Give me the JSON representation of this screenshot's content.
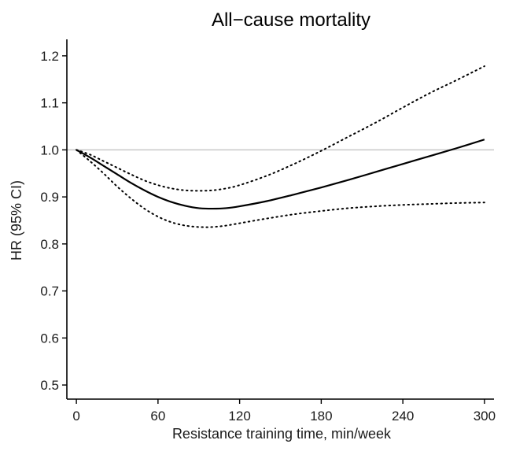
{
  "chart_data": {
    "type": "line",
    "title": "All−cause mortality",
    "xlabel": "Resistance training time, min/week",
    "ylabel": "HR (95% CI)",
    "xlim": [
      -7,
      307
    ],
    "ylim": [
      0.47,
      1.235
    ],
    "xticks": [
      0,
      60,
      120,
      180,
      240,
      300
    ],
    "xtick_labels": [
      "0",
      "60",
      "120",
      "180",
      "240",
      "300"
    ],
    "yticks": [
      0.5,
      0.6,
      0.7,
      0.8,
      0.9,
      1.0,
      1.1,
      1.2
    ],
    "ytick_labels": [
      "0.5",
      "0.6",
      "0.7",
      "0.8",
      "0.9",
      "1.0",
      "1.1",
      "1.2"
    ],
    "reference_line": {
      "y": 1.0,
      "color": "#c8c8c8"
    },
    "grid": false,
    "series": [
      {
        "style": "solid",
        "x": [
          0,
          10,
          20,
          30,
          40,
          50,
          60,
          70,
          80,
          90,
          100,
          110,
          120,
          140,
          160,
          180,
          200,
          220,
          240,
          260,
          280,
          300
        ],
        "y": [
          1.0,
          0.984,
          0.966,
          0.948,
          0.93,
          0.914,
          0.9,
          0.889,
          0.881,
          0.876,
          0.875,
          0.876,
          0.88,
          0.891,
          0.905,
          0.92,
          0.936,
          0.953,
          0.97,
          0.987,
          1.004,
          1.022
        ]
      },
      {
        "style": "dotted",
        "x": [
          0,
          10,
          20,
          30,
          40,
          50,
          60,
          70,
          80,
          90,
          100,
          110,
          120,
          140,
          160,
          180,
          200,
          220,
          240,
          260,
          280,
          300
        ],
        "y": [
          1.0,
          0.99,
          0.976,
          0.962,
          0.948,
          0.935,
          0.925,
          0.918,
          0.914,
          0.913,
          0.914,
          0.918,
          0.925,
          0.945,
          0.97,
          0.998,
          1.028,
          1.058,
          1.09,
          1.121,
          1.149,
          1.178
        ]
      },
      {
        "style": "dotted",
        "x": [
          0,
          10,
          20,
          30,
          40,
          50,
          60,
          70,
          80,
          90,
          100,
          110,
          120,
          140,
          160,
          180,
          200,
          220,
          240,
          260,
          280,
          300
        ],
        "y": [
          1.0,
          0.976,
          0.95,
          0.922,
          0.897,
          0.875,
          0.858,
          0.846,
          0.839,
          0.836,
          0.836,
          0.839,
          0.844,
          0.854,
          0.863,
          0.87,
          0.876,
          0.88,
          0.883,
          0.885,
          0.887,
          0.888
        ]
      }
    ]
  }
}
